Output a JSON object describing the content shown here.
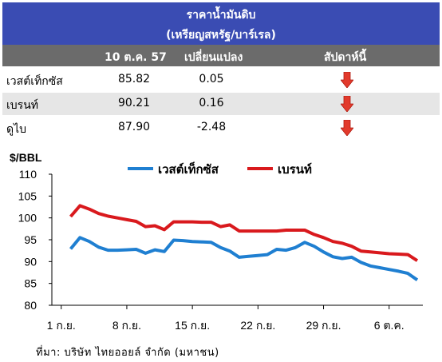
{
  "header": {
    "title": "ราคาน้ำมันดิบ",
    "subtitle": "(เหรียญสหรัฐ/บาร์เรล)"
  },
  "table": {
    "columns": [
      "10 ต.ค. 57",
      "เปลี่ยนแปลง",
      "สัปดาห์นี้"
    ],
    "rows": [
      {
        "name": "เวสต์เท็กซัส",
        "price": "85.82",
        "change": "0.05",
        "trend": "down"
      },
      {
        "name": "เบรนท์",
        "price": "90.21",
        "change": "0.16",
        "trend": "down"
      },
      {
        "name": "ดูไบ",
        "price": "87.90",
        "change": "-2.48",
        "trend": "down"
      }
    ],
    "arrow_color": "#e23a2c"
  },
  "chart_data": {
    "type": "line",
    "ylabel": "$/BBL",
    "ylim": [
      80,
      110
    ],
    "yticks": [
      80,
      85,
      90,
      95,
      100,
      105,
      110
    ],
    "xticks": [
      {
        "label": "1 ก.ย.",
        "day": 1
      },
      {
        "label": "8 ก.ย.",
        "day": 8
      },
      {
        "label": "15 ก.ย.",
        "day": 15
      },
      {
        "label": "22 ก.ย.",
        "day": 22
      },
      {
        "label": "29 ก.ย.",
        "day": 29
      },
      {
        "label": "6 ต.ค.",
        "day": 36
      }
    ],
    "legend_position": "top",
    "series": [
      {
        "name": "เวสต์เท็กซัส",
        "color": "#1f7fd1",
        "x": [
          2,
          3,
          4,
          5,
          6,
          7,
          8,
          9,
          10,
          11,
          12,
          13,
          14,
          15,
          16,
          17,
          18,
          19,
          20,
          21,
          22,
          23,
          24,
          25,
          26,
          27,
          28,
          29,
          30,
          31,
          32,
          33,
          34,
          35,
          36,
          37,
          38,
          39
        ],
        "values": [
          92.9,
          95.5,
          94.6,
          93.3,
          92.6,
          92.6,
          92.7,
          92.8,
          91.9,
          92.7,
          92.3,
          94.9,
          94.8,
          94.6,
          94.5,
          94.4,
          93.2,
          92.4,
          91.0,
          91.2,
          91.4,
          91.6,
          92.8,
          92.6,
          93.2,
          94.4,
          93.5,
          92.2,
          91.1,
          90.7,
          91.0,
          89.8,
          89.0,
          88.6,
          88.2,
          87.8,
          87.3,
          85.8
        ]
      },
      {
        "name": "เบรนท์",
        "color": "#d9191d",
        "x": [
          2,
          3,
          4,
          5,
          6,
          7,
          8,
          9,
          10,
          11,
          12,
          13,
          14,
          15,
          16,
          17,
          18,
          19,
          20,
          21,
          22,
          23,
          24,
          25,
          26,
          27,
          28,
          29,
          30,
          31,
          32,
          33,
          34,
          35,
          36,
          37,
          38,
          39
        ],
        "values": [
          100.3,
          102.8,
          102.0,
          101.0,
          100.4,
          100.0,
          99.6,
          99.2,
          98.0,
          98.2,
          97.3,
          99.1,
          99.1,
          99.1,
          99.0,
          99.0,
          98.0,
          98.4,
          97.0,
          97.0,
          97.0,
          97.0,
          97.0,
          97.2,
          97.2,
          97.2,
          96.2,
          95.5,
          94.6,
          94.2,
          93.5,
          92.4,
          92.2,
          92.0,
          91.8,
          91.7,
          91.6,
          90.2
        ]
      }
    ]
  },
  "footer": {
    "source": "ที่มา: บริษัท ไทยออยล์ จำกัด (มหาชน)"
  }
}
